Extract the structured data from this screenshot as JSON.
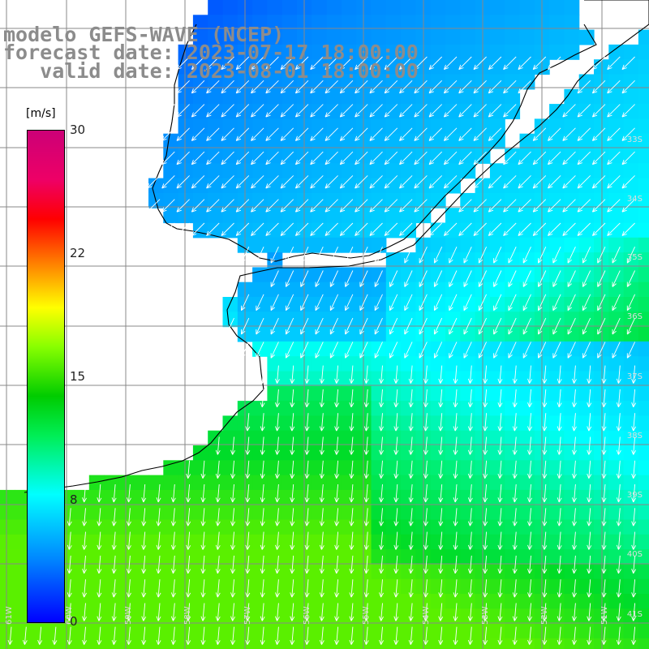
{
  "header": {
    "line1": "modelo GEFS-WAVE (NCEP)",
    "line2": "forecast date: 2023-07-17 18:00:00",
    "line3": "   valid date: 2023-08-01 18:00:00"
  },
  "colorbar": {
    "unit": "[m/s]",
    "ticks": [
      "30",
      "22",
      "15",
      "8",
      "0"
    ]
  },
  "map": {
    "variable": "wind speed and direction",
    "arrow_direction": "mostly toward south / south-west",
    "colors": {
      "land": "#ffffff",
      "grid": "#888888",
      "coastline": "#000000",
      "arrow": "#ffffff"
    },
    "lat_labels": [
      "33S",
      "34S",
      "35S",
      "36S",
      "37S",
      "38S",
      "39S",
      "40S",
      "41S"
    ],
    "lon_labels": [
      "61W",
      "60W",
      "59W",
      "58W",
      "57W",
      "56W",
      "55W",
      "54W",
      "53W",
      "52W",
      "51W"
    ]
  }
}
